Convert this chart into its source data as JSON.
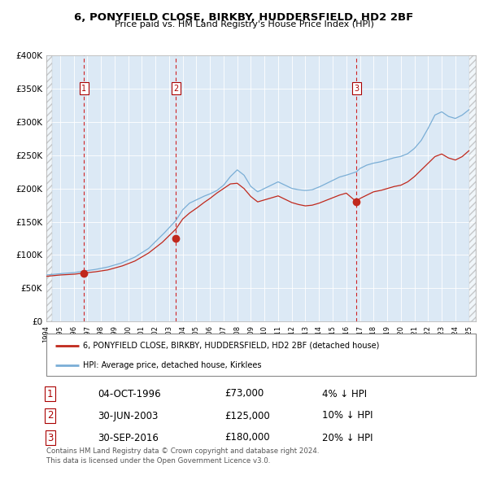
{
  "title1": "6, PONYFIELD CLOSE, BIRKBY, HUDDERSFIELD, HD2 2BF",
  "title2": "Price paid vs. HM Land Registry's House Price Index (HPI)",
  "hpi_label": "HPI: Average price, detached house, Kirklees",
  "property_label": "6, PONYFIELD CLOSE, BIRKBY, HUDDERSFIELD, HD2 2BF (detached house)",
  "footnote1": "Contains HM Land Registry data © Crown copyright and database right 2024.",
  "footnote2": "This data is licensed under the Open Government Licence v3.0.",
  "sale_dates": [
    "04-OCT-1996",
    "30-JUN-2003",
    "30-SEP-2016"
  ],
  "sale_prices": [
    73000,
    125000,
    180000
  ],
  "sale_hpi_diff": [
    "4%",
    "10%",
    "20%"
  ],
  "sale_years": [
    1996.75,
    2003.5,
    2016.75
  ],
  "hpi_color": "#7aaed6",
  "property_color": "#c0281c",
  "dashed_line_color": "#cc0000",
  "dot_color": "#c0281c",
  "plot_bg": "#dce9f5",
  "ylim": [
    0,
    400000
  ],
  "yticks": [
    0,
    50000,
    100000,
    150000,
    200000,
    250000,
    300000,
    350000,
    400000
  ],
  "ytick_labels": [
    "£0",
    "£50K",
    "£100K",
    "£150K",
    "£200K",
    "£250K",
    "£300K",
    "£350K",
    "£400K"
  ],
  "xstart": 1994.0,
  "xend": 2025.5,
  "hpi_keypoints": [
    [
      1994.0,
      70000
    ],
    [
      1995.0,
      72000
    ],
    [
      1996.0,
      73500
    ],
    [
      1996.75,
      76000
    ],
    [
      1997.5,
      78000
    ],
    [
      1998.5,
      82000
    ],
    [
      1999.5,
      88000
    ],
    [
      2000.5,
      97000
    ],
    [
      2001.5,
      110000
    ],
    [
      2002.5,
      130000
    ],
    [
      2003.5,
      152000
    ],
    [
      2004.0,
      168000
    ],
    [
      2004.5,
      178000
    ],
    [
      2005.0,
      183000
    ],
    [
      2005.5,
      188000
    ],
    [
      2006.0,
      192000
    ],
    [
      2006.5,
      197000
    ],
    [
      2007.0,
      205000
    ],
    [
      2007.5,
      218000
    ],
    [
      2008.0,
      228000
    ],
    [
      2008.5,
      220000
    ],
    [
      2009.0,
      203000
    ],
    [
      2009.5,
      195000
    ],
    [
      2010.0,
      200000
    ],
    [
      2010.5,
      205000
    ],
    [
      2011.0,
      210000
    ],
    [
      2011.5,
      205000
    ],
    [
      2012.0,
      200000
    ],
    [
      2012.5,
      198000
    ],
    [
      2013.0,
      197000
    ],
    [
      2013.5,
      198000
    ],
    [
      2014.0,
      202000
    ],
    [
      2014.5,
      207000
    ],
    [
      2015.0,
      212000
    ],
    [
      2015.5,
      217000
    ],
    [
      2016.0,
      220000
    ],
    [
      2016.75,
      225000
    ],
    [
      2017.0,
      230000
    ],
    [
      2017.5,
      235000
    ],
    [
      2018.0,
      238000
    ],
    [
      2018.5,
      240000
    ],
    [
      2019.0,
      243000
    ],
    [
      2019.5,
      246000
    ],
    [
      2020.0,
      248000
    ],
    [
      2020.5,
      252000
    ],
    [
      2021.0,
      260000
    ],
    [
      2021.5,
      272000
    ],
    [
      2022.0,
      290000
    ],
    [
      2022.5,
      310000
    ],
    [
      2023.0,
      315000
    ],
    [
      2023.5,
      308000
    ],
    [
      2024.0,
      305000
    ],
    [
      2024.5,
      310000
    ],
    [
      2025.0,
      318000
    ]
  ],
  "prop_keypoints": [
    [
      1994.0,
      68000
    ],
    [
      1995.0,
      70000
    ],
    [
      1996.0,
      71000
    ],
    [
      1996.75,
      73000
    ],
    [
      1997.5,
      74500
    ],
    [
      1998.5,
      77500
    ],
    [
      1999.5,
      83000
    ],
    [
      2000.5,
      91000
    ],
    [
      2001.5,
      103000
    ],
    [
      2002.5,
      119000
    ],
    [
      2003.5,
      139000
    ],
    [
      2004.0,
      154000
    ],
    [
      2004.5,
      163000
    ],
    [
      2005.0,
      170000
    ],
    [
      2005.5,
      178000
    ],
    [
      2006.0,
      185000
    ],
    [
      2006.5,
      193000
    ],
    [
      2007.0,
      200000
    ],
    [
      2007.5,
      207000
    ],
    [
      2008.0,
      208000
    ],
    [
      2008.5,
      200000
    ],
    [
      2009.0,
      188000
    ],
    [
      2009.5,
      180000
    ],
    [
      2010.0,
      183000
    ],
    [
      2010.5,
      186000
    ],
    [
      2011.0,
      189000
    ],
    [
      2011.5,
      184000
    ],
    [
      2012.0,
      179000
    ],
    [
      2012.5,
      176000
    ],
    [
      2013.0,
      174000
    ],
    [
      2013.5,
      175000
    ],
    [
      2014.0,
      178000
    ],
    [
      2014.5,
      182000
    ],
    [
      2015.0,
      186000
    ],
    [
      2015.5,
      190000
    ],
    [
      2016.0,
      193000
    ],
    [
      2016.75,
      180000
    ],
    [
      2017.0,
      185000
    ],
    [
      2017.5,
      190000
    ],
    [
      2018.0,
      195000
    ],
    [
      2018.5,
      197000
    ],
    [
      2019.0,
      200000
    ],
    [
      2019.5,
      203000
    ],
    [
      2020.0,
      205000
    ],
    [
      2020.5,
      210000
    ],
    [
      2021.0,
      218000
    ],
    [
      2021.5,
      228000
    ],
    [
      2022.0,
      238000
    ],
    [
      2022.5,
      248000
    ],
    [
      2023.0,
      252000
    ],
    [
      2023.5,
      246000
    ],
    [
      2024.0,
      243000
    ],
    [
      2024.5,
      248000
    ],
    [
      2025.0,
      257000
    ]
  ]
}
